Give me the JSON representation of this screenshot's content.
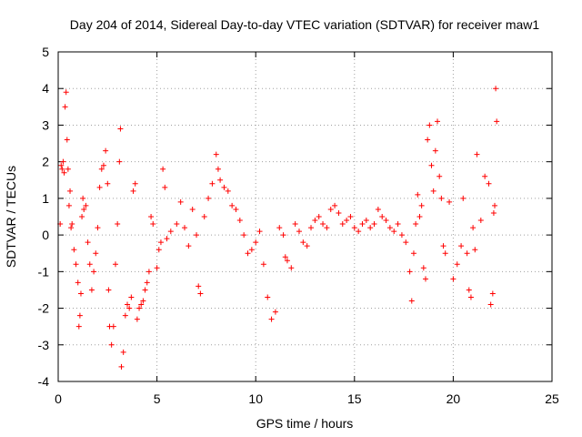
{
  "chart_data": {
    "type": "scatter",
    "title": "Day 204 of 2014, Sidereal Day-to-day VTEC variation (SDTVAR) for receiver maw1",
    "xlabel": "GPS time / hours",
    "ylabel": "SDTVAR / TECUs",
    "xlim": [
      0,
      25
    ],
    "ylim": [
      -4,
      5
    ],
    "xticks": [
      "0",
      "5",
      "10",
      "15",
      "20",
      "25"
    ],
    "yticks": [
      "-4",
      "-3",
      "-2",
      "-1",
      "0",
      "1",
      "2",
      "3",
      "4",
      "5"
    ],
    "grid": true,
    "marker": "+",
    "color": "#ff0000",
    "series": [
      {
        "name": "SDTVAR",
        "points": [
          [
            0.1,
            0.3
          ],
          [
            0.15,
            1.9
          ],
          [
            0.2,
            1.8
          ],
          [
            0.25,
            2.0
          ],
          [
            0.3,
            1.7
          ],
          [
            0.35,
            3.5
          ],
          [
            0.4,
            3.9
          ],
          [
            0.45,
            2.6
          ],
          [
            0.5,
            1.8
          ],
          [
            0.55,
            0.8
          ],
          [
            0.6,
            1.2
          ],
          [
            0.65,
            0.2
          ],
          [
            0.7,
            0.3
          ],
          [
            0.8,
            -0.4
          ],
          [
            0.9,
            -0.8
          ],
          [
            1.0,
            -1.3
          ],
          [
            1.05,
            -2.5
          ],
          [
            1.1,
            -2.2
          ],
          [
            1.15,
            -1.6
          ],
          [
            1.2,
            0.5
          ],
          [
            1.25,
            1.0
          ],
          [
            1.3,
            0.7
          ],
          [
            1.4,
            0.8
          ],
          [
            1.5,
            -0.2
          ],
          [
            1.6,
            -0.8
          ],
          [
            1.7,
            -1.5
          ],
          [
            1.8,
            -1.0
          ],
          [
            1.9,
            -0.5
          ],
          [
            2.0,
            0.2
          ],
          [
            2.1,
            1.3
          ],
          [
            2.2,
            1.8
          ],
          [
            2.3,
            1.9
          ],
          [
            2.4,
            2.3
          ],
          [
            2.5,
            1.4
          ],
          [
            2.55,
            -1.5
          ],
          [
            2.6,
            -2.5
          ],
          [
            2.7,
            -3.0
          ],
          [
            2.8,
            -2.5
          ],
          [
            2.9,
            -0.8
          ],
          [
            3.0,
            0.3
          ],
          [
            3.1,
            2.0
          ],
          [
            3.15,
            2.9
          ],
          [
            3.2,
            -3.6
          ],
          [
            3.3,
            -3.2
          ],
          [
            3.4,
            -2.2
          ],
          [
            3.5,
            -1.9
          ],
          [
            3.6,
            -2.0
          ],
          [
            3.7,
            -1.7
          ],
          [
            3.8,
            1.2
          ],
          [
            3.9,
            1.4
          ],
          [
            4.0,
            -2.3
          ],
          [
            4.1,
            -2.0
          ],
          [
            4.2,
            -1.9
          ],
          [
            4.3,
            -1.8
          ],
          [
            4.4,
            -1.5
          ],
          [
            4.5,
            -1.3
          ],
          [
            4.6,
            -1.0
          ],
          [
            4.7,
            0.5
          ],
          [
            4.8,
            0.3
          ],
          [
            5.0,
            -0.9
          ],
          [
            5.1,
            -0.4
          ],
          [
            5.2,
            -0.2
          ],
          [
            5.3,
            1.8
          ],
          [
            5.4,
            1.3
          ],
          [
            5.5,
            -0.1
          ],
          [
            5.7,
            0.1
          ],
          [
            6.0,
            0.3
          ],
          [
            6.2,
            0.9
          ],
          [
            6.4,
            0.2
          ],
          [
            6.6,
            -0.3
          ],
          [
            6.8,
            0.7
          ],
          [
            7.0,
            0.0
          ],
          [
            7.1,
            -1.4
          ],
          [
            7.2,
            -1.6
          ],
          [
            7.4,
            0.5
          ],
          [
            7.6,
            1.0
          ],
          [
            7.8,
            1.4
          ],
          [
            8.0,
            2.2
          ],
          [
            8.1,
            1.8
          ],
          [
            8.2,
            1.5
          ],
          [
            8.4,
            1.3
          ],
          [
            8.6,
            1.2
          ],
          [
            8.8,
            0.8
          ],
          [
            9.0,
            0.7
          ],
          [
            9.2,
            0.4
          ],
          [
            9.4,
            0.0
          ],
          [
            9.6,
            -0.5
          ],
          [
            9.8,
            -0.4
          ],
          [
            10.0,
            -0.2
          ],
          [
            10.2,
            0.1
          ],
          [
            10.4,
            -0.8
          ],
          [
            10.6,
            -1.7
          ],
          [
            10.8,
            -2.3
          ],
          [
            11.0,
            -2.1
          ],
          [
            11.2,
            0.2
          ],
          [
            11.4,
            0.0
          ],
          [
            11.5,
            -0.6
          ],
          [
            11.6,
            -0.7
          ],
          [
            11.8,
            -0.9
          ],
          [
            12.0,
            0.3
          ],
          [
            12.2,
            0.1
          ],
          [
            12.4,
            -0.2
          ],
          [
            12.6,
            -0.3
          ],
          [
            12.8,
            0.2
          ],
          [
            13.0,
            0.4
          ],
          [
            13.2,
            0.5
          ],
          [
            13.4,
            0.3
          ],
          [
            13.6,
            0.2
          ],
          [
            13.8,
            0.7
          ],
          [
            14.0,
            0.8
          ],
          [
            14.2,
            0.6
          ],
          [
            14.4,
            0.3
          ],
          [
            14.6,
            0.4
          ],
          [
            14.8,
            0.5
          ],
          [
            15.0,
            0.2
          ],
          [
            15.2,
            0.1
          ],
          [
            15.4,
            0.3
          ],
          [
            15.6,
            0.4
          ],
          [
            15.8,
            0.2
          ],
          [
            16.0,
            0.3
          ],
          [
            16.2,
            0.7
          ],
          [
            16.4,
            0.5
          ],
          [
            16.6,
            0.4
          ],
          [
            16.8,
            0.2
          ],
          [
            17.0,
            0.1
          ],
          [
            17.2,
            0.3
          ],
          [
            17.4,
            0.0
          ],
          [
            17.6,
            -0.2
          ],
          [
            17.8,
            -1.0
          ],
          [
            17.9,
            -1.8
          ],
          [
            18.0,
            -0.5
          ],
          [
            18.1,
            0.3
          ],
          [
            18.2,
            1.1
          ],
          [
            18.3,
            0.5
          ],
          [
            18.4,
            0.8
          ],
          [
            18.5,
            -0.9
          ],
          [
            18.6,
            -1.2
          ],
          [
            18.7,
            2.6
          ],
          [
            18.8,
            3.0
          ],
          [
            18.9,
            1.9
          ],
          [
            19.0,
            1.2
          ],
          [
            19.1,
            2.3
          ],
          [
            19.2,
            3.1
          ],
          [
            19.3,
            1.6
          ],
          [
            19.4,
            1.0
          ],
          [
            19.5,
            -0.3
          ],
          [
            19.6,
            -0.5
          ],
          [
            19.8,
            0.9
          ],
          [
            20.0,
            -1.2
          ],
          [
            20.2,
            -0.8
          ],
          [
            20.4,
            -0.3
          ],
          [
            20.5,
            1.0
          ],
          [
            20.7,
            -0.5
          ],
          [
            20.8,
            -1.5
          ],
          [
            20.9,
            -1.7
          ],
          [
            21.0,
            0.2
          ],
          [
            21.1,
            -0.4
          ],
          [
            21.2,
            2.2
          ],
          [
            21.4,
            0.4
          ],
          [
            21.6,
            1.6
          ],
          [
            21.8,
            1.4
          ],
          [
            21.9,
            -1.9
          ],
          [
            22.0,
            -1.6
          ],
          [
            22.05,
            0.6
          ],
          [
            22.1,
            0.8
          ],
          [
            22.15,
            4.0
          ],
          [
            22.2,
            3.1
          ]
        ]
      }
    ]
  }
}
